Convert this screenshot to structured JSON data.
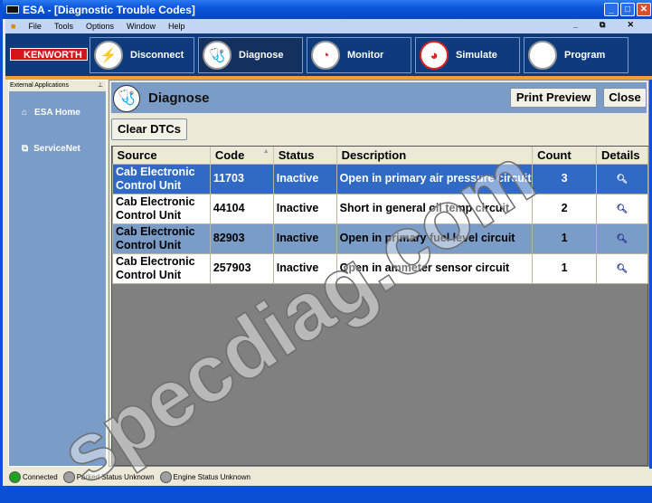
{
  "window": {
    "title": "ESA - [Diagnostic Trouble Codes]",
    "app_icon": "ESA"
  },
  "menu": [
    "File",
    "Tools",
    "Options",
    "Window",
    "Help"
  ],
  "toolbar": {
    "logo": "KENWORTH",
    "buttons": [
      {
        "label": "Disconnect",
        "icon": "plug-icon"
      },
      {
        "label": "Diagnose",
        "icon": "stethoscope-icon",
        "active": true
      },
      {
        "label": "Monitor",
        "icon": "gauge-icon"
      },
      {
        "label": "Simulate",
        "icon": "speedometer-icon"
      },
      {
        "label": "Program",
        "icon": "chip-icon"
      }
    ]
  },
  "sidebar": {
    "header": "External Applications",
    "items": [
      {
        "label": "ESA Home",
        "icon": "home-icon"
      },
      {
        "label": "ServiceNet",
        "icon": "windows-icon"
      }
    ]
  },
  "panel": {
    "title": "Diagnose",
    "print_preview": "Print Preview",
    "close": "Close",
    "clear_dtcs": "Clear DTCs"
  },
  "table": {
    "columns": [
      "Source",
      "Code",
      "Status",
      "Description",
      "Count",
      "Details"
    ],
    "rows": [
      {
        "source": "Cab Electronic Control Unit",
        "code": "11703",
        "status": "Inactive",
        "description": "Open in primary air pressure circuit",
        "count": "3"
      },
      {
        "source": "Cab Electronic Control Unit",
        "code": "44104",
        "status": "Inactive",
        "description": "Short in general oil temp circuit",
        "count": "2"
      },
      {
        "source": "Cab Electronic Control Unit",
        "code": "82903",
        "status": "Inactive",
        "description": "Open in primary fuel level circuit",
        "count": "1"
      },
      {
        "source": "Cab Electronic Control Unit",
        "code": "257903",
        "status": "Inactive",
        "description": "Open in ammeter sensor circuit",
        "count": "1"
      }
    ]
  },
  "status": [
    {
      "label": "Connected",
      "color": "#1fa31f"
    },
    {
      "label": "Parked Status Unknown",
      "color": "#a0a0a0"
    },
    {
      "label": "Engine Status Unknown",
      "color": "#a0a0a0"
    }
  ],
  "watermark": "specdiag.com"
}
